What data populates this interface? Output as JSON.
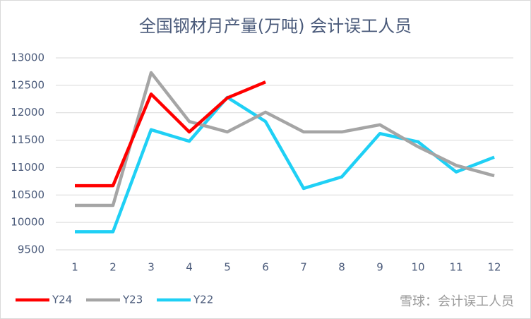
{
  "chart_data": {
    "type": "line",
    "title": "全国钢材月产量(万吨)  会计误工人员",
    "watermark": "雪球：会计误工人员",
    "categories": [
      "1",
      "2",
      "3",
      "4",
      "5",
      "6",
      "7",
      "8",
      "9",
      "10",
      "11",
      "12"
    ],
    "series": [
      {
        "name": "Y24",
        "color": "#ff0000",
        "values": [
          10670,
          10670,
          12340,
          11650,
          12270,
          12560,
          null,
          null,
          null,
          null,
          null,
          null
        ]
      },
      {
        "name": "Y23",
        "color": "#a5a5a5",
        "values": [
          10310,
          10310,
          12730,
          11840,
          11650,
          12010,
          11650,
          11650,
          11780,
          11380,
          11040,
          10850
        ]
      },
      {
        "name": "Y22",
        "color": "#1fd0f5",
        "values": [
          9830,
          9830,
          11690,
          11480,
          12280,
          11840,
          10620,
          10830,
          11620,
          11470,
          10920,
          11190
        ]
      }
    ],
    "ylim": [
      9500,
      13000
    ],
    "yticks": [
      9500,
      10000,
      10500,
      11000,
      11500,
      12000,
      12500,
      13000
    ],
    "grid": true,
    "legend": "bottom-left"
  }
}
